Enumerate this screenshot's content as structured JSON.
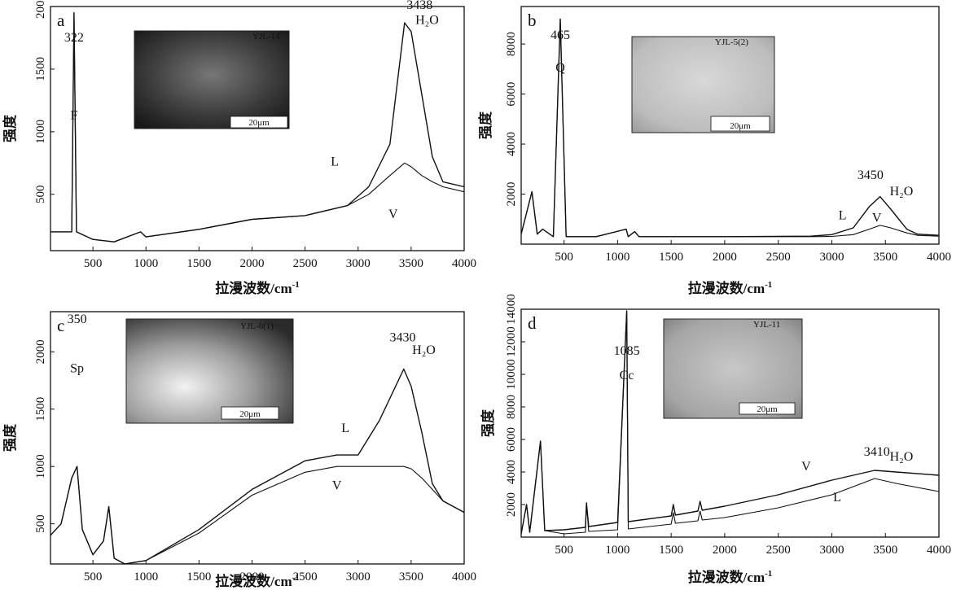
{
  "chart_data": [
    {
      "id": "a",
      "type": "line",
      "panel_label": "a",
      "xlabel": "拉漫波数/cm",
      "xlabel_sup": "-1",
      "ylabel": "强度",
      "xlim": [
        100,
        4000
      ],
      "ylim": [
        50,
        2000
      ],
      "xticks": [
        "500",
        "1000",
        "1500",
        "2000",
        "2500",
        "3000",
        "3500",
        "4000"
      ],
      "yticks": [
        "500",
        "1000",
        "1500",
        "2000"
      ],
      "photo_label": "YJL-14",
      "scale_label": "20μm",
      "annotations": [
        {
          "text": "322",
          "x": 322,
          "y": 1720
        },
        {
          "text": "F",
          "x": 322,
          "y": 1100
        },
        {
          "text": "3438",
          "x": 3580,
          "y": 1980
        },
        {
          "text": "H₂O",
          "x": 3650,
          "y": 1860
        },
        {
          "text": "L",
          "x": 2780,
          "y": 730
        },
        {
          "text": "V",
          "x": 3330,
          "y": 310
        }
      ],
      "series": [
        {
          "values": [
            [
              100,
              200
            ],
            [
              300,
              200
            ],
            [
              322,
              1950
            ],
            [
              345,
              200
            ],
            [
              500,
              140
            ],
            [
              700,
              120
            ],
            [
              950,
              200
            ],
            [
              1000,
              160
            ],
            [
              1500,
              220
            ],
            [
              2000,
              300
            ],
            [
              2500,
              330
            ],
            [
              2900,
              410
            ],
            [
              3100,
              560
            ],
            [
              3300,
              900
            ],
            [
              3438,
              1870
            ],
            [
              3500,
              1800
            ],
            [
              3600,
              1300
            ],
            [
              3700,
              800
            ],
            [
              3800,
              600
            ],
            [
              4000,
              560
            ]
          ]
        },
        {
          "values": [
            [
              100,
              200
            ],
            [
              300,
              200
            ],
            [
              322,
              1950
            ],
            [
              345,
              200
            ],
            [
              500,
              140
            ],
            [
              700,
              120
            ],
            [
              950,
              200
            ],
            [
              1000,
              160
            ],
            [
              1500,
              220
            ],
            [
              2000,
              300
            ],
            [
              2500,
              330
            ],
            [
              2900,
              410
            ],
            [
              3100,
              500
            ],
            [
              3300,
              650
            ],
            [
              3438,
              750
            ],
            [
              3500,
              720
            ],
            [
              3600,
              650
            ],
            [
              3700,
              600
            ],
            [
              3800,
              560
            ],
            [
              4000,
              520
            ]
          ]
        }
      ]
    },
    {
      "id": "b",
      "type": "line",
      "panel_label": "b",
      "xlabel": "拉漫波数/cm",
      "xlabel_sup": "-1",
      "ylabel": "强度",
      "xlim": [
        100,
        4000
      ],
      "ylim": [
        0,
        9500
      ],
      "xticks": [
        "500",
        "1000",
        "1500",
        "2000",
        "2500",
        "3000",
        "3500",
        "4000"
      ],
      "yticks": [
        "2000",
        "4000",
        "6000",
        "8000"
      ],
      "photo_label": "YJL-5(2)",
      "scale_label": "20μm",
      "annotations": [
        {
          "text": "465",
          "x": 465,
          "y": 8200
        },
        {
          "text": "Q",
          "x": 465,
          "y": 6900
        },
        {
          "text": "3450",
          "x": 3360,
          "y": 2600
        },
        {
          "text": "H₂O",
          "x": 3650,
          "y": 1950
        },
        {
          "text": "L",
          "x": 3100,
          "y": 1000
        },
        {
          "text": "V",
          "x": 3420,
          "y": 900
        }
      ],
      "series": [
        {
          "values": [
            [
              100,
              400
            ],
            [
              200,
              2100
            ],
            [
              250,
              400
            ],
            [
              300,
              600
            ],
            [
              400,
              300
            ],
            [
              465,
              9000
            ],
            [
              520,
              300
            ],
            [
              800,
              300
            ],
            [
              1080,
              600
            ],
            [
              1100,
              300
            ],
            [
              1160,
              500
            ],
            [
              1200,
              300
            ],
            [
              2000,
              300
            ],
            [
              2800,
              320
            ],
            [
              3000,
              380
            ],
            [
              3200,
              650
            ],
            [
              3350,
              1500
            ],
            [
              3450,
              1900
            ],
            [
              3550,
              1400
            ],
            [
              3700,
              600
            ],
            [
              3800,
              400
            ],
            [
              4000,
              350
            ]
          ]
        },
        {
          "values": [
            [
              100,
              400
            ],
            [
              200,
              2100
            ],
            [
              250,
              400
            ],
            [
              300,
              600
            ],
            [
              400,
              300
            ],
            [
              465,
              9000
            ],
            [
              520,
              300
            ],
            [
              800,
              300
            ],
            [
              1080,
              600
            ],
            [
              1100,
              300
            ],
            [
              1160,
              500
            ],
            [
              1200,
              300
            ],
            [
              2000,
              300
            ],
            [
              2800,
              300
            ],
            [
              3000,
              310
            ],
            [
              3200,
              380
            ],
            [
              3350,
              600
            ],
            [
              3450,
              750
            ],
            [
              3550,
              650
            ],
            [
              3700,
              450
            ],
            [
              3800,
              350
            ],
            [
              4000,
              320
            ]
          ]
        }
      ]
    },
    {
      "id": "c",
      "type": "line",
      "panel_label": "c",
      "xlabel": "拉漫波数/cm",
      "xlabel_sup": "-1",
      "ylabel": "强度",
      "xlim": [
        100,
        4000
      ],
      "ylim": [
        150,
        2350
      ],
      "xticks": [
        "500",
        "1000",
        "1500",
        "2000",
        "2500",
        "3000",
        "3500",
        "4000"
      ],
      "yticks": [
        "500",
        "1000",
        "1500",
        "2000"
      ],
      "photo_label": "YJL-6(1)",
      "scale_label": "20μm",
      "annotations": [
        {
          "text": "350",
          "x": 350,
          "y": 2250
        },
        {
          "text": "Sp",
          "x": 350,
          "y": 1820
        },
        {
          "text": "3430",
          "x": 3420,
          "y": 2090
        },
        {
          "text": "H₂O",
          "x": 3620,
          "y": 1980
        },
        {
          "text": "L",
          "x": 2880,
          "y": 1300
        },
        {
          "text": "V",
          "x": 2800,
          "y": 800
        }
      ],
      "series": [
        {
          "values": [
            [
              100,
              400
            ],
            [
              200,
              500
            ],
            [
              300,
              900
            ],
            [
              350,
              1000
            ],
            [
              400,
              450
            ],
            [
              500,
              230
            ],
            [
              600,
              350
            ],
            [
              650,
              650
            ],
            [
              700,
              200
            ],
            [
              800,
              150
            ],
            [
              1000,
              180
            ],
            [
              1500,
              450
            ],
            [
              2000,
              800
            ],
            [
              2500,
              1050
            ],
            [
              2800,
              1100
            ],
            [
              3000,
              1100
            ],
            [
              3200,
              1400
            ],
            [
              3430,
              1850
            ],
            [
              3500,
              1700
            ],
            [
              3600,
              1300
            ],
            [
              3700,
              850
            ],
            [
              3800,
              700
            ],
            [
              4000,
              600
            ]
          ]
        },
        {
          "values": [
            [
              100,
              400
            ],
            [
              200,
              500
            ],
            [
              300,
              900
            ],
            [
              350,
              1000
            ],
            [
              400,
              450
            ],
            [
              500,
              230
            ],
            [
              600,
              350
            ],
            [
              650,
              650
            ],
            [
              700,
              200
            ],
            [
              800,
              150
            ],
            [
              1000,
              180
            ],
            [
              1500,
              420
            ],
            [
              2000,
              750
            ],
            [
              2500,
              950
            ],
            [
              2800,
              1000
            ],
            [
              3000,
              1000
            ],
            [
              3200,
              1000
            ],
            [
              3430,
              1000
            ],
            [
              3500,
              980
            ],
            [
              3600,
              900
            ],
            [
              3700,
              800
            ],
            [
              3800,
              700
            ],
            [
              4000,
              600
            ]
          ]
        }
      ]
    },
    {
      "id": "d",
      "type": "line",
      "panel_label": "d",
      "xlabel": "拉漫波数/cm",
      "xlabel_sup": "-1",
      "ylabel": "强度",
      "xlim": [
        100,
        4000
      ],
      "ylim": [
        0,
        14000
      ],
      "xticks": [
        "500",
        "1000",
        "1500",
        "2000",
        "2500",
        "3000",
        "3500",
        "4000"
      ],
      "yticks": [
        "2000",
        "4000",
        "6000",
        "8000",
        "10000",
        "12000",
        "14000"
      ],
      "photo_label": "YJL-11",
      "scale_label": "20μm",
      "annotations": [
        {
          "text": "1085",
          "x": 1085,
          "y": 11200
        },
        {
          "text": "Cc",
          "x": 1085,
          "y": 9700
        },
        {
          "text": "3410",
          "x": 3420,
          "y": 5000
        },
        {
          "text": "H₂O",
          "x": 3650,
          "y": 4700
        },
        {
          "text": "V",
          "x": 2760,
          "y": 4100
        },
        {
          "text": "L",
          "x": 3050,
          "y": 2200
        }
      ],
      "series": [
        {
          "values": [
            [
              100,
              200
            ],
            [
              150,
              2000
            ],
            [
              180,
              300
            ],
            [
              280,
              5900
            ],
            [
              320,
              400
            ],
            [
              500,
              450
            ],
            [
              700,
              600
            ],
            [
              710,
              2100
            ],
            [
              730,
              650
            ],
            [
              1000,
              900
            ],
            [
              1085,
              13900
            ],
            [
              1100,
              950
            ],
            [
              1500,
              1300
            ],
            [
              1520,
              2000
            ],
            [
              1540,
              1350
            ],
            [
              1750,
              1600
            ],
            [
              1770,
              2200
            ],
            [
              1790,
              1650
            ],
            [
              2000,
              1900
            ],
            [
              2500,
              2600
            ],
            [
              3000,
              3500
            ],
            [
              3400,
              4100
            ],
            [
              3600,
              4000
            ],
            [
              4000,
              3800
            ]
          ]
        },
        {
          "values": [
            [
              100,
              200
            ],
            [
              150,
              2000
            ],
            [
              180,
              300
            ],
            [
              280,
              5900
            ],
            [
              320,
              400
            ],
            [
              500,
              200
            ],
            [
              700,
              300
            ],
            [
              710,
              2100
            ],
            [
              730,
              350
            ],
            [
              1000,
              450
            ],
            [
              1085,
              13900
            ],
            [
              1100,
              500
            ],
            [
              1500,
              800
            ],
            [
              1520,
              1500
            ],
            [
              1540,
              850
            ],
            [
              1750,
              1000
            ],
            [
              1770,
              1600
            ],
            [
              1790,
              1050
            ],
            [
              2000,
              1200
            ],
            [
              2500,
              1800
            ],
            [
              3000,
              2600
            ],
            [
              3400,
              3600
            ],
            [
              3600,
              3300
            ],
            [
              4000,
              2800
            ]
          ]
        }
      ]
    }
  ]
}
